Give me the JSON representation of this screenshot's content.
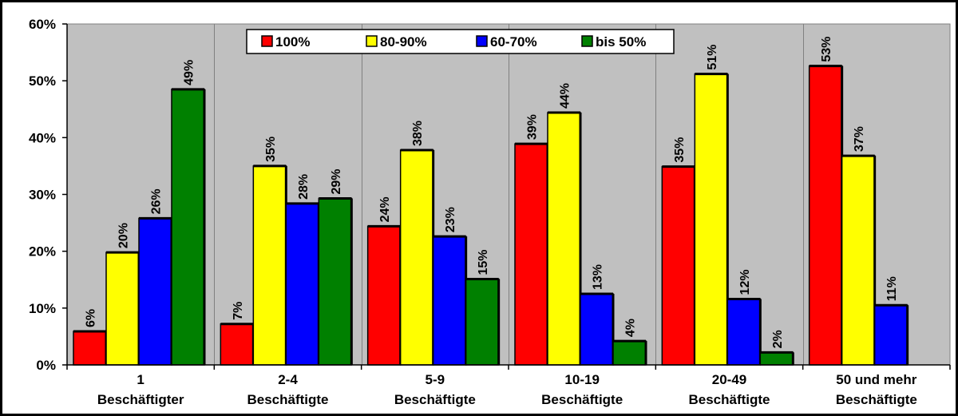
{
  "chart_data": {
    "type": "bar",
    "categories": [
      [
        "1",
        "Beschäftigter"
      ],
      [
        "2-4",
        "Beschäftigte"
      ],
      [
        "5-9",
        "Beschäftigte"
      ],
      [
        "10-19",
        "Beschäftigte"
      ],
      [
        "20-49",
        "Beschäftigte"
      ],
      [
        "50 und mehr",
        "Beschäftigte"
      ]
    ],
    "series": [
      {
        "name": "100%",
        "color": "#ff0000",
        "values": [
          6,
          7,
          24,
          39,
          35,
          53
        ]
      },
      {
        "name": "80-90%",
        "color": "#ffff00",
        "values": [
          20,
          35,
          38,
          44,
          51,
          37
        ]
      },
      {
        "name": "60-70%",
        "color": "#0000ff",
        "values": [
          26,
          28,
          23,
          13,
          12,
          11
        ]
      },
      {
        "name": "bis 50%",
        "color": "#008000",
        "values": [
          49,
          29,
          15,
          4,
          2,
          null
        ]
      }
    ],
    "bar_heights_estimated": [
      [
        5.9,
        7.2,
        24.4,
        38.9,
        34.9,
        52.6
      ],
      [
        19.8,
        35.0,
        37.8,
        44.4,
        51.2,
        36.8
      ],
      [
        25.8,
        28.4,
        22.6,
        12.5,
        11.6,
        10.5
      ],
      [
        48.5,
        29.3,
        15.1,
        4.2,
        2.2,
        null
      ]
    ],
    "data_labels": [
      [
        "6%",
        "7%",
        "24%",
        "39%",
        "35%",
        "53%"
      ],
      [
        "20%",
        "35%",
        "38%",
        "44%",
        "51%",
        "37%"
      ],
      [
        "26%",
        "28%",
        "23%",
        "13%",
        "12%",
        "11%"
      ],
      [
        "49%",
        "29%",
        "15%",
        "4%",
        "2%",
        null
      ]
    ],
    "y_ticks": [
      "0%",
      "10%",
      "20%",
      "30%",
      "40%",
      "50%",
      "60%"
    ],
    "ylim": [
      0,
      60
    ],
    "grid": false,
    "legend_position": "top-center",
    "plot_background": "#c0c0c0"
  }
}
